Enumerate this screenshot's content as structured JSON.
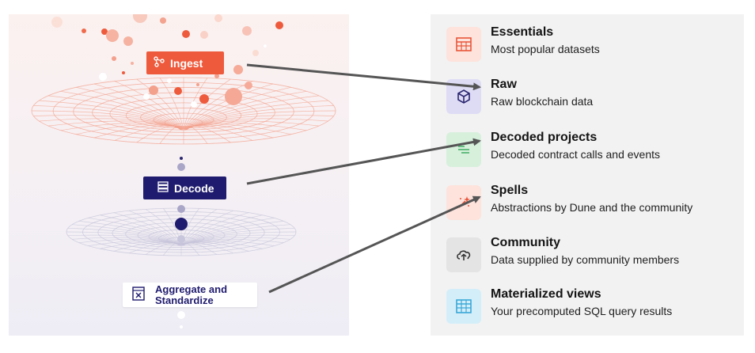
{
  "pipeline": {
    "stages": [
      {
        "key": "ingest",
        "label": "Ingest",
        "color": "#ee5a3c"
      },
      {
        "key": "decode",
        "label": "Decode",
        "color": "#1f1b6e"
      },
      {
        "key": "aggregate",
        "label": "Aggregate and Standardize",
        "color": "#1f1b6e"
      }
    ]
  },
  "categories": [
    {
      "title": "Essentials",
      "description": "Most popular datasets",
      "icon": "table-icon",
      "icon_color": "#e8553a",
      "icon_bg": "#fde3dc"
    },
    {
      "title": "Raw",
      "description": "Raw blockchain data",
      "icon": "cube-icon",
      "icon_color": "#2a2670",
      "icon_bg": "#dedcf5"
    },
    {
      "title": "Decoded projects",
      "description": "Decoded contract calls and events",
      "icon": "decoded-lines-icon",
      "icon_color": "#48b06a",
      "icon_bg": "#d7f0dc"
    },
    {
      "title": "Spells",
      "description": "Abstractions by Dune and the community",
      "icon": "magic-wand-icon",
      "icon_color": "#e8553a",
      "icon_bg": "#fde3dc"
    },
    {
      "title": "Community",
      "description": "Data supplied by community members",
      "icon": "cloud-upload-icon",
      "icon_color": "#333333",
      "icon_bg": "#e4e4e4"
    },
    {
      "title": "Materialized views",
      "description": "Your precomputed SQL query results",
      "icon": "grid-table-icon",
      "icon_color": "#3aa8d8",
      "icon_bg": "#d4eef9"
    }
  ],
  "arrow_color": "#555555"
}
